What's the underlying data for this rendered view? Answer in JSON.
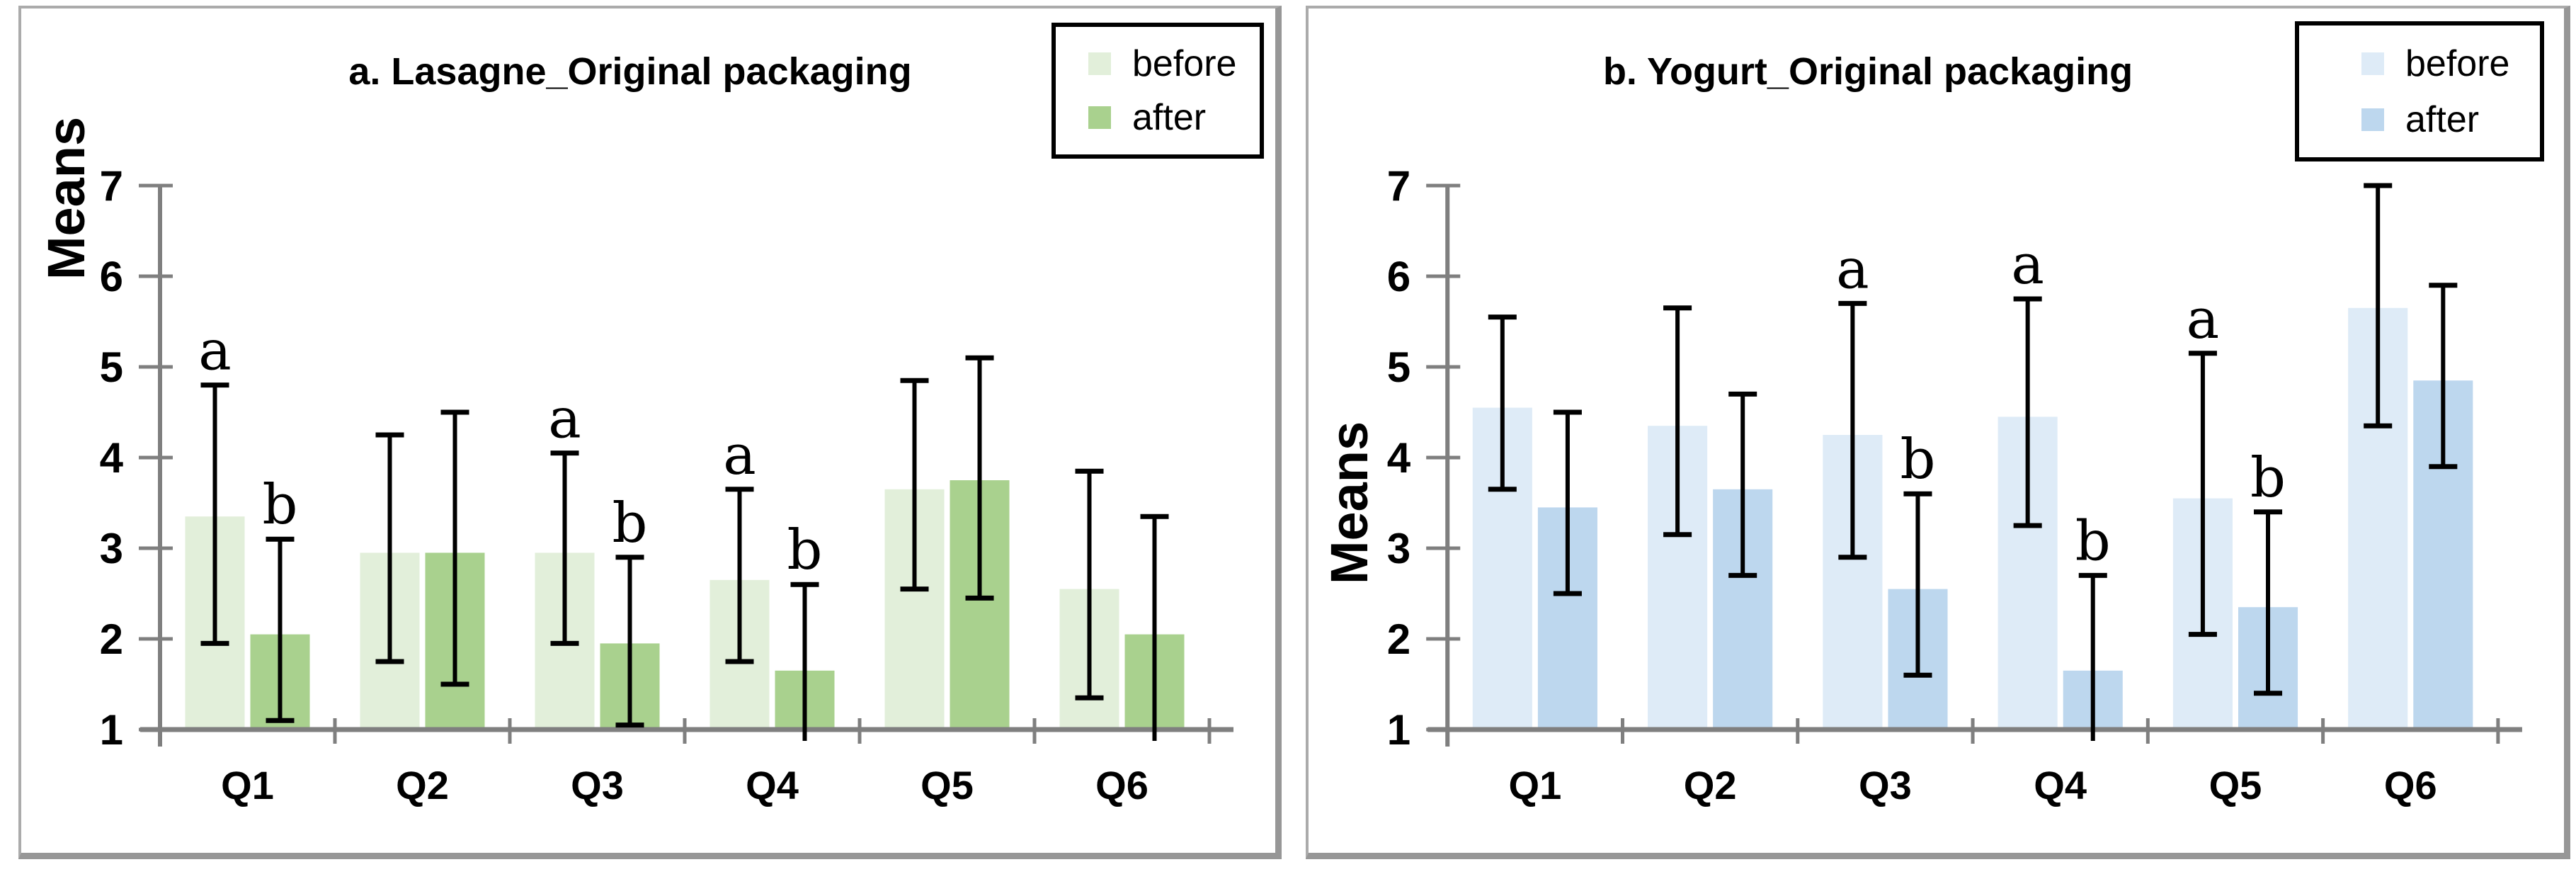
{
  "chart_data": [
    {
      "type": "bar",
      "title": "a. Lasagne_Original packaging",
      "ylabel": "Means",
      "ylim": [
        1,
        7
      ],
      "yticks": [
        1,
        2,
        3,
        4,
        5,
        6,
        7
      ],
      "categories": [
        "Q1",
        "Q2",
        "Q3",
        "Q4",
        "Q5",
        "Q6"
      ],
      "grid": false,
      "legend_position": "top-right",
      "axis_color": "#7f7f7f",
      "error_bar_color": "#000000",
      "series": [
        {
          "name": "before",
          "color": "#e2efda",
          "values": [
            3.35,
            2.95,
            2.95,
            2.65,
            3.65,
            2.55
          ],
          "error_low": [
            1.95,
            1.75,
            1.95,
            1.75,
            2.55,
            1.35
          ],
          "error_high": [
            4.8,
            4.25,
            4.05,
            3.65,
            4.85,
            3.85
          ],
          "sig_labels": [
            "a",
            "",
            "a",
            "a",
            "",
            ""
          ]
        },
        {
          "name": "after",
          "color": "#a9d18e",
          "values": [
            2.05,
            2.95,
            1.95,
            1.65,
            3.75,
            2.05
          ],
          "error_low": [
            1.1,
            1.5,
            1.05,
            0.95,
            2.45,
            0.95
          ],
          "error_high": [
            3.1,
            4.5,
            2.9,
            2.6,
            5.1,
            3.35
          ],
          "sig_labels": [
            "b",
            "",
            "b",
            "b",
            "",
            ""
          ]
        }
      ]
    },
    {
      "type": "bar",
      "title": "b. Yogurt_Original packaging",
      "ylabel": "Means",
      "ylim": [
        1,
        7
      ],
      "yticks": [
        1,
        2,
        3,
        4,
        5,
        6,
        7
      ],
      "categories": [
        "Q1",
        "Q2",
        "Q3",
        "Q4",
        "Q5",
        "Q6"
      ],
      "grid": false,
      "legend_position": "top-right",
      "axis_color": "#7f7f7f",
      "error_bar_color": "#000000",
      "series": [
        {
          "name": "before",
          "color": "#deebf7",
          "values": [
            4.55,
            4.35,
            4.25,
            4.45,
            3.55,
            5.65
          ],
          "error_low": [
            3.65,
            3.15,
            2.9,
            3.25,
            2.05,
            4.35
          ],
          "error_high": [
            5.55,
            5.65,
            5.7,
            5.75,
            5.15,
            7.0
          ],
          "sig_labels": [
            "",
            "",
            "a",
            "a",
            "a",
            ""
          ]
        },
        {
          "name": "after",
          "color": "#bdd7ee",
          "values": [
            3.45,
            3.65,
            2.55,
            1.65,
            2.35,
            4.85
          ],
          "error_low": [
            2.5,
            2.7,
            1.6,
            0.95,
            1.4,
            3.9
          ],
          "error_high": [
            4.5,
            4.7,
            3.6,
            2.7,
            3.4,
            5.9
          ],
          "sig_labels": [
            "",
            "",
            "b",
            "b",
            "b",
            ""
          ]
        }
      ]
    }
  ]
}
